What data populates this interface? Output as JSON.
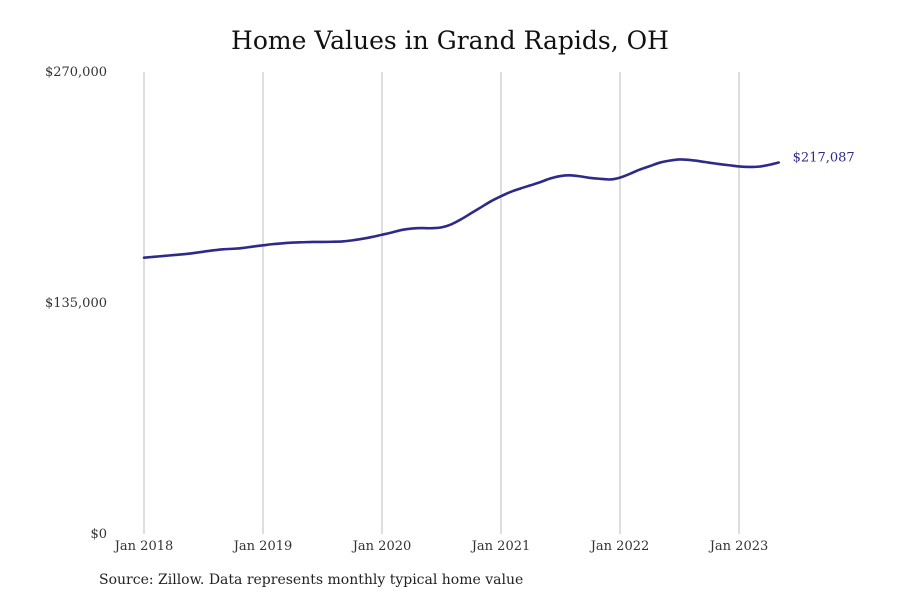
{
  "chart_data": {
    "type": "line",
    "title": "Home Values in Grand Rapids, OH",
    "xlabel": "",
    "ylabel": "",
    "ylim": [
      0,
      270000
    ],
    "y_ticks": [
      0,
      135000,
      270000
    ],
    "y_tick_labels": [
      "$0",
      "$135,000",
      "$270,000"
    ],
    "x_ticks": [
      "2018-01",
      "2019-01",
      "2020-01",
      "2021-01",
      "2022-01",
      "2023-01"
    ],
    "x_tick_labels": [
      "Jan 2018",
      "Jan 2019",
      "Jan 2020",
      "Jan 2021",
      "Jan 2022",
      "Jan 2023"
    ],
    "grid": "vertical",
    "line_color": "#2e2a8a",
    "series": [
      {
        "x": [
          "2018-01",
          "2018-02",
          "2018-03",
          "2018-04",
          "2018-05",
          "2018-06",
          "2018-07",
          "2018-08",
          "2018-09",
          "2018-10",
          "2018-11",
          "2018-12",
          "2019-01",
          "2019-02",
          "2019-03",
          "2019-04",
          "2019-05",
          "2019-06",
          "2019-07",
          "2019-08",
          "2019-09",
          "2019-10",
          "2019-11",
          "2019-12",
          "2020-01",
          "2020-02",
          "2020-03",
          "2020-04",
          "2020-05",
          "2020-06",
          "2020-07",
          "2020-08",
          "2020-09",
          "2020-10",
          "2020-11",
          "2020-12",
          "2021-01",
          "2021-02",
          "2021-03",
          "2021-04",
          "2021-05",
          "2021-06",
          "2021-07",
          "2021-08",
          "2021-09",
          "2021-10",
          "2021-11",
          "2021-12",
          "2022-01",
          "2022-02",
          "2022-03",
          "2022-04",
          "2022-05",
          "2022-06",
          "2022-07",
          "2022-08",
          "2022-09",
          "2022-10",
          "2022-11",
          "2022-12",
          "2023-01",
          "2023-02",
          "2023-03",
          "2023-04",
          "2023-05"
        ],
        "values": [
          161500,
          162000,
          162500,
          163000,
          163500,
          164200,
          165000,
          165800,
          166400,
          166700,
          167200,
          168000,
          168700,
          169400,
          169900,
          170300,
          170500,
          170700,
          170700,
          170800,
          171000,
          171600,
          172500,
          173600,
          174900,
          176200,
          177700,
          178500,
          178800,
          178700,
          179200,
          181000,
          184000,
          187500,
          191000,
          194500,
          197400,
          200000,
          202000,
          203800,
          205700,
          207800,
          209200,
          209600,
          209000,
          208100,
          207600,
          207200,
          208300,
          210500,
          213000,
          215000,
          217000,
          218200,
          218900,
          218600,
          217900,
          217000,
          216200,
          215500,
          214800,
          214500,
          214700,
          215700,
          217087
        ]
      }
    ],
    "end_label": "$217,087"
  },
  "source_note": "Source: Zillow. Data represents monthly typical home value"
}
